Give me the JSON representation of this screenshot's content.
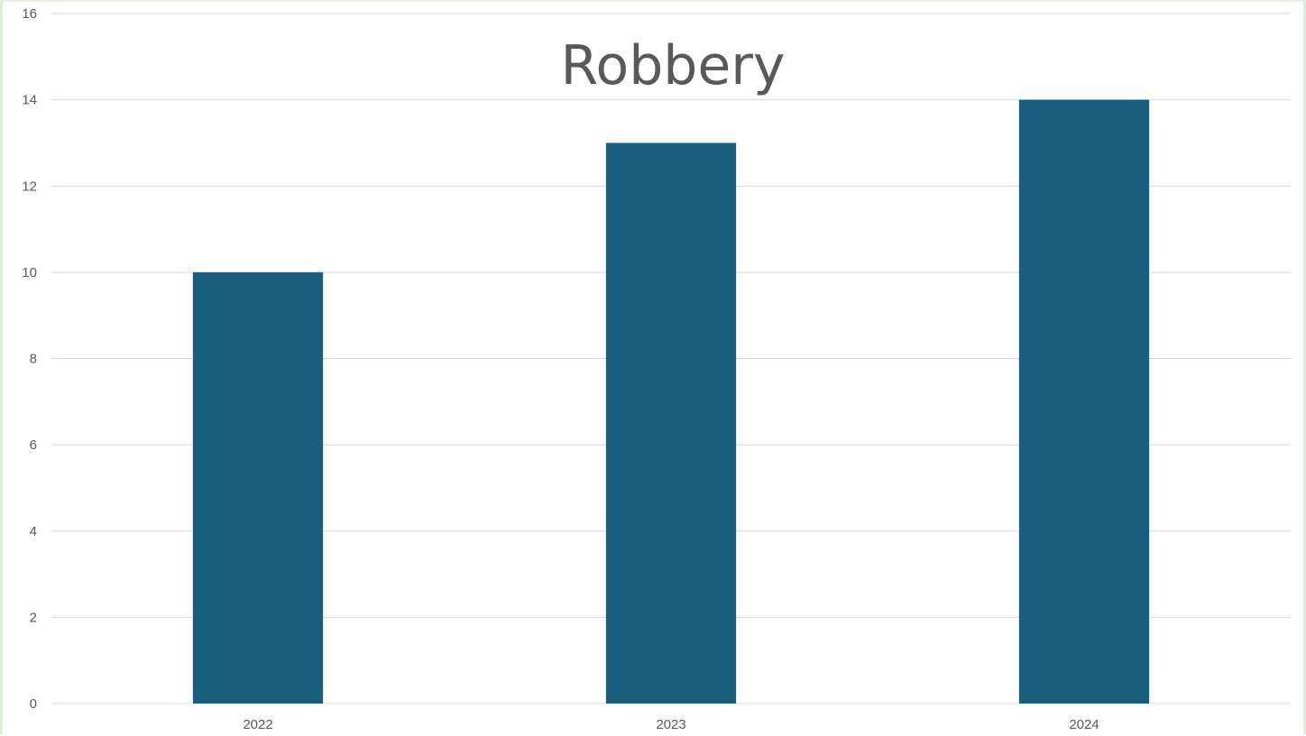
{
  "chart_data": {
    "type": "bar",
    "title": "Robbery",
    "categories": [
      "2022",
      "2023",
      "2024"
    ],
    "values": [
      10,
      13,
      14
    ],
    "xlabel": "",
    "ylabel": "",
    "ylim": [
      0,
      16
    ],
    "y_ticks": [
      "0",
      "2",
      "4",
      "6",
      "8",
      "10",
      "12",
      "14",
      "16"
    ],
    "grid": true,
    "legend": "none",
    "bar_color": "#175e7f",
    "grid_color": "#d9d9d9",
    "text_color": "#595959"
  }
}
